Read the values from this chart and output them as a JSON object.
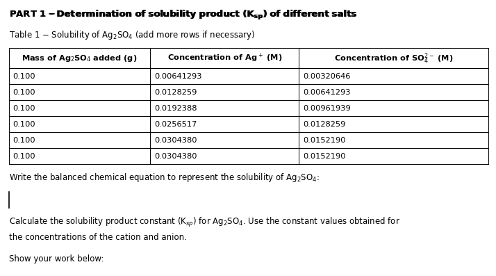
{
  "title_bold": "PART 1",
  "title_rest": " – Determination of solubility product (K",
  "title_end": ") of different salts",
  "table_title": "Table 1 – Solubility of Ag₂SO₄ (add more rows if necessary)",
  "col_headers": [
    "Mass of Ag₂SO₄ added (g)",
    "Concentration of Ag⁺ (M)",
    "Concentration of SO₄²⁻ (M)"
  ],
  "rows": [
    [
      "0.100",
      "0.00641293",
      "0.00320646"
    ],
    [
      "0.100",
      "0.0128259",
      "0.00641293"
    ],
    [
      "0.100",
      "0.0192388",
      "0.00961939"
    ],
    [
      "0.100",
      "0.0256517",
      "0.0128259"
    ],
    [
      "0.100",
      "0.0304380",
      "0.0152190"
    ],
    [
      "0.100",
      "0.0304380",
      "0.0152190"
    ]
  ],
  "text1": "Write the balanced chemical equation to represent the solubility of Ag₂SO₄:",
  "text2a": "Calculate the solubility product constant (K",
  "text2b": ") for Ag₂SO₄. Use the constant values obtained for",
  "text2c": "the concentrations of the cation and anion.",
  "text3": "Show your work below:",
  "bg_color": "#ffffff",
  "text_color": "#000000",
  "font_size_title": 9.5,
  "font_size_body": 8.5,
  "font_size_table": 8.2
}
